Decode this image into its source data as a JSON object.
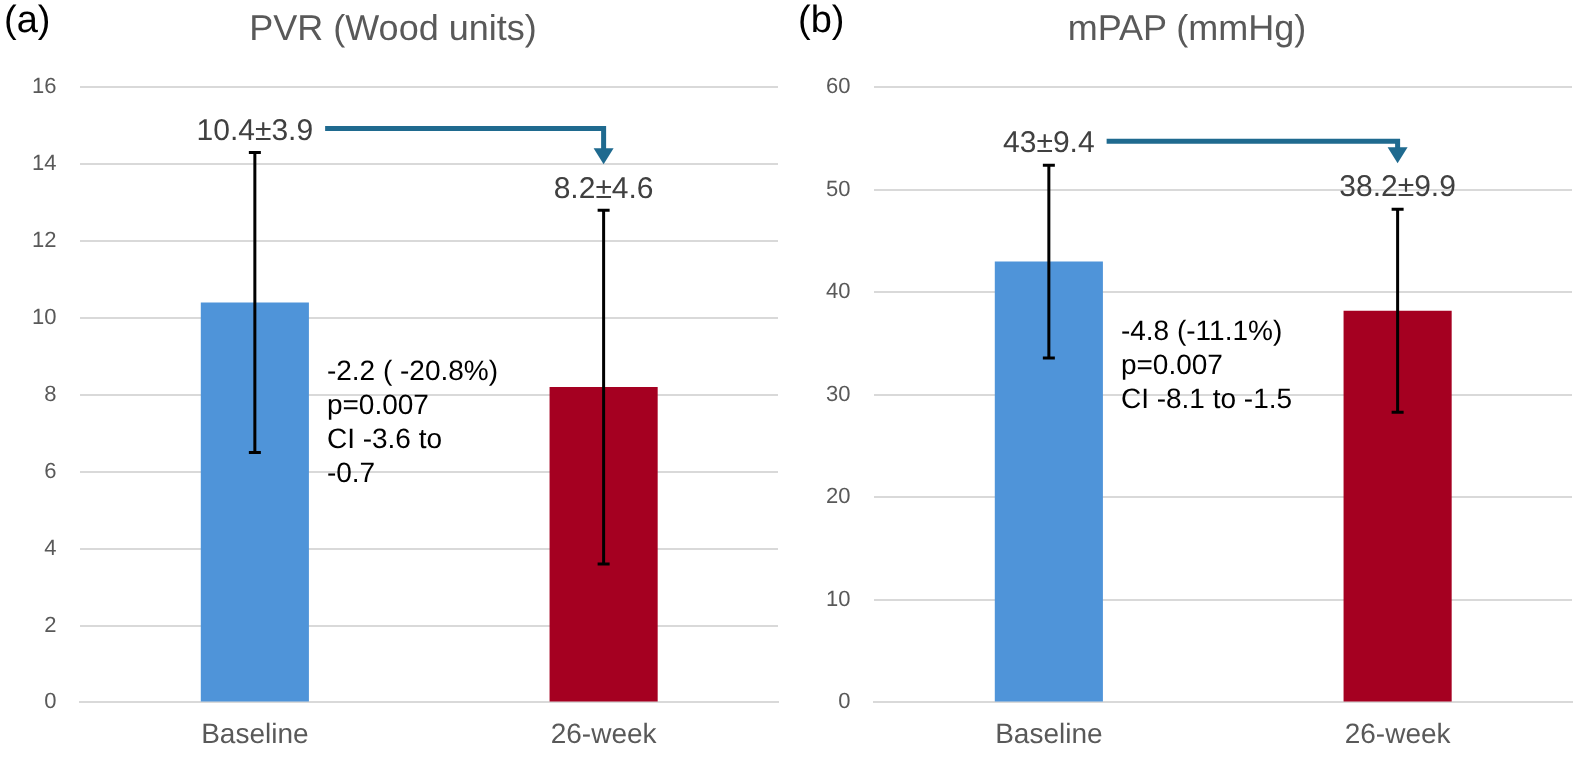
{
  "chart_data": [
    {
      "type": "bar",
      "title": "PVR (Wood units)",
      "categories": [
        "Baseline",
        "26-week"
      ],
      "values": [
        10.4,
        8.2
      ],
      "colors": [
        "#4f94d9",
        "#a50021"
      ],
      "errors": [
        3.9,
        4.6
      ],
      "ylim": [
        0,
        16
      ],
      "yticks": [
        0,
        2,
        4,
        6,
        8,
        10,
        12,
        14,
        16
      ],
      "grid": "y",
      "annotations": [
        "(a)",
        "-2.2 ( -20.8%)\np=0.007\nCI -3.6 to\n-0.7",
        {
          "text": "10.4±3.9",
          "x": "Baseline",
          "y": 14.3
        },
        {
          "text": "8.2±4.6",
          "x": "26-week",
          "y": 12.8
        }
      ]
    },
    {
      "type": "bar",
      "title": "mPAP (mmHg)",
      "categories": [
        "Baseline",
        "26-week"
      ],
      "values": [
        43,
        38.2
      ],
      "colors": [
        "#4f94d9",
        "#a50021"
      ],
      "errors": [
        9.4,
        9.9
      ],
      "ylim": [
        0,
        60
      ],
      "yticks": [
        0,
        10,
        20,
        30,
        40,
        50,
        60
      ],
      "grid": "y",
      "annotations": [
        "(b)",
        "-4.8 (-11.1%)\np=0.007\nCI -8.1 to -1.5",
        {
          "text": "43±9.4",
          "x": "Baseline",
          "y": 52.4
        },
        {
          "text": "38.2±9.9",
          "x": "26-week",
          "y": 48.1
        }
      ]
    }
  ]
}
